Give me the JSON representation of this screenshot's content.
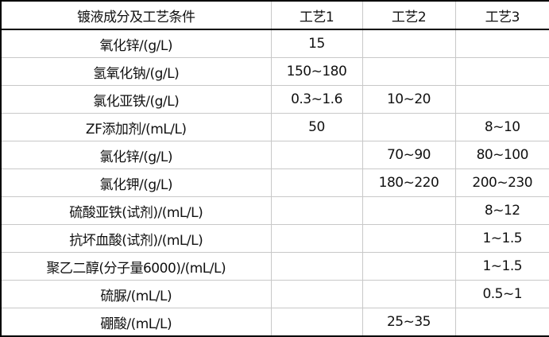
{
  "table": {
    "headers": [
      "镀液成分及工艺条件",
      "工艺1",
      "工艺2",
      "工艺3"
    ],
    "rows": [
      [
        "氧化锌/(g/L)",
        "15",
        "",
        ""
      ],
      [
        "氢氧化钠/(g/L)",
        "150~180",
        "",
        ""
      ],
      [
        "氯化亚铁/(g/L)",
        "0.3~1.6",
        "10~20",
        ""
      ],
      [
        "ZF添加剂/(mL/L)",
        "50",
        "",
        "8~10"
      ],
      [
        "氯化锌/(g/L)",
        "",
        "70~90",
        "80~100"
      ],
      [
        "氯化钾/(g/L)",
        "",
        "180~220",
        "200~230"
      ],
      [
        "硫酸亚铁(试剂)/(mL/L)",
        "",
        "",
        "8~12"
      ],
      [
        "抗坏血酸(试剂)/(mL/L)",
        "",
        "",
        "1~1.5"
      ],
      [
        "聚乙二醇(分子量6000)/(mL/L)",
        "",
        "",
        "1~1.5"
      ],
      [
        "硫脲/(mL/L)",
        "",
        "",
        "0.5~1"
      ],
      [
        "硼酸/(mL/L)",
        "",
        "25~35",
        ""
      ]
    ]
  }
}
